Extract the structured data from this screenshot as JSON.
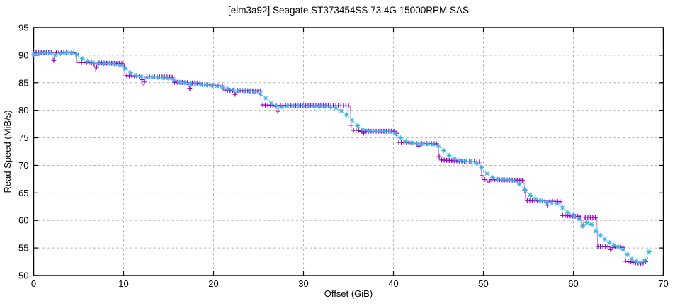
{
  "chart_data": {
    "type": "line",
    "title": "[elm3a92] Seagate ST373454SS 73.4G 15000RPM SAS",
    "xlabel": "Offset (GiB)",
    "ylabel": "Read Speed (MiB/s)",
    "xlim": [
      0,
      70
    ],
    "ylim": [
      50,
      95
    ],
    "xticks": [
      0,
      10,
      20,
      30,
      40,
      50,
      60,
      70
    ],
    "yticks": [
      50,
      55,
      60,
      65,
      70,
      75,
      80,
      85,
      90,
      95
    ],
    "grid": true,
    "legend": "none",
    "grid_color": "#b3b3b3",
    "border_color": "#000000",
    "background": "#ffffff",
    "series": [
      {
        "name": "read-speed-raw",
        "marker": "plus",
        "marker_color": "#9902c8",
        "line_color": "#c87ce6",
        "marker_interval_gib": 0.28,
        "points": [
          [
            0,
            90.1
          ],
          [
            0.25,
            90.5
          ],
          [
            1.95,
            90.5
          ],
          [
            2.2,
            88.8
          ],
          [
            2.45,
            90.5
          ],
          [
            4.75,
            90.4
          ],
          [
            4.85,
            88.7
          ],
          [
            6.7,
            88.6
          ],
          [
            6.9,
            87.0
          ],
          [
            7.1,
            88.6
          ],
          [
            10.05,
            88.5
          ],
          [
            10.15,
            86.3
          ],
          [
            11.95,
            86.2
          ],
          [
            12.2,
            84.4
          ],
          [
            12.45,
            86.1
          ],
          [
            15.5,
            86.0
          ],
          [
            15.6,
            85.1
          ],
          [
            17.15,
            85.0
          ],
          [
            17.4,
            83.8
          ],
          [
            17.65,
            85.0
          ],
          [
            18.5,
            84.9
          ],
          [
            18.6,
            84.7
          ],
          [
            21.0,
            84.4
          ],
          [
            21.1,
            83.7
          ],
          [
            22.15,
            83.6
          ],
          [
            22.4,
            82.9
          ],
          [
            22.65,
            83.6
          ],
          [
            25.2,
            83.5
          ],
          [
            25.3,
            81.0
          ],
          [
            26.85,
            80.9
          ],
          [
            27.1,
            79.5
          ],
          [
            27.35,
            80.9
          ],
          [
            35.2,
            80.8
          ],
          [
            35.3,
            76.4
          ],
          [
            36.35,
            76.3
          ],
          [
            36.6,
            75.7
          ],
          [
            36.85,
            76.2
          ],
          [
            40.3,
            76.2
          ],
          [
            40.4,
            74.2
          ],
          [
            42.55,
            74.0
          ],
          [
            42.8,
            73.4
          ],
          [
            43.05,
            74.0
          ],
          [
            45.0,
            73.9
          ],
          [
            45.1,
            71.0
          ],
          [
            49.6,
            70.6
          ],
          [
            49.9,
            67.5
          ],
          [
            50.3,
            67.4
          ],
          [
            50.55,
            66.8
          ],
          [
            50.8,
            67.4
          ],
          [
            54.5,
            67.3
          ],
          [
            54.7,
            63.6
          ],
          [
            56.85,
            63.5
          ],
          [
            57.1,
            62.7
          ],
          [
            57.35,
            63.5
          ],
          [
            58.7,
            63.4
          ],
          [
            58.8,
            60.9
          ],
          [
            60.75,
            60.7
          ],
          [
            61.0,
            58.7
          ],
          [
            61.25,
            60.6
          ],
          [
            62.6,
            60.5
          ],
          [
            62.7,
            55.3
          ],
          [
            63.95,
            55.2
          ],
          [
            64.2,
            54.5
          ],
          [
            64.45,
            55.2
          ],
          [
            65.7,
            55.1
          ],
          [
            65.8,
            52.6
          ],
          [
            67.5,
            52.2
          ],
          [
            68.0,
            52.4
          ],
          [
            68.3,
            53.3
          ]
        ]
      },
      {
        "name": "read-speed-smoothed",
        "marker": "asterisk",
        "marker_color": "#2eb8e6",
        "line_color": "#93d7ef",
        "points": [
          [
            0,
            90.1
          ],
          [
            0.6,
            90.3
          ],
          [
            1.2,
            90.4
          ],
          [
            1.8,
            90.4
          ],
          [
            2.4,
            90.0
          ],
          [
            3.0,
            90.3
          ],
          [
            3.6,
            90.4
          ],
          [
            4.2,
            90.4
          ],
          [
            4.8,
            90.1
          ],
          [
            5.4,
            89.4
          ],
          [
            6.0,
            88.9
          ],
          [
            6.6,
            88.7
          ],
          [
            7.2,
            88.5
          ],
          [
            7.8,
            88.5
          ],
          [
            8.4,
            88.5
          ],
          [
            9.0,
            88.4
          ],
          [
            9.6,
            88.2
          ],
          [
            10.2,
            87.6
          ],
          [
            10.8,
            86.8
          ],
          [
            11.4,
            86.3
          ],
          [
            12.0,
            86.1
          ],
          [
            12.6,
            85.9
          ],
          [
            13.2,
            86.0
          ],
          [
            13.8,
            85.9
          ],
          [
            14.4,
            85.9
          ],
          [
            15.0,
            85.8
          ],
          [
            15.6,
            85.5
          ],
          [
            16.2,
            85.1
          ],
          [
            16.8,
            85.0
          ],
          [
            17.4,
            84.8
          ],
          [
            18.0,
            84.8
          ],
          [
            18.6,
            84.7
          ],
          [
            19.2,
            84.6
          ],
          [
            19.8,
            84.5
          ],
          [
            20.4,
            84.4
          ],
          [
            21.0,
            84.2
          ],
          [
            21.6,
            83.9
          ],
          [
            22.2,
            83.7
          ],
          [
            22.8,
            83.5
          ],
          [
            23.4,
            83.5
          ],
          [
            24.0,
            83.5
          ],
          [
            24.6,
            83.4
          ],
          [
            25.2,
            83.0
          ],
          [
            25.8,
            82.2
          ],
          [
            26.4,
            81.3
          ],
          [
            27.0,
            80.8
          ],
          [
            27.6,
            80.6
          ],
          [
            28.2,
            80.8
          ],
          [
            28.8,
            80.8
          ],
          [
            29.4,
            80.8
          ],
          [
            30.0,
            80.8
          ],
          [
            30.6,
            80.8
          ],
          [
            31.2,
            80.7
          ],
          [
            31.8,
            80.7
          ],
          [
            32.4,
            80.7
          ],
          [
            33.0,
            80.6
          ],
          [
            33.6,
            80.4
          ],
          [
            34.2,
            79.9
          ],
          [
            34.8,
            79.2
          ],
          [
            35.4,
            78.2
          ],
          [
            36.0,
            77.2
          ],
          [
            36.6,
            76.5
          ],
          [
            37.2,
            76.3
          ],
          [
            37.8,
            76.2
          ],
          [
            38.4,
            76.2
          ],
          [
            39.0,
            76.2
          ],
          [
            39.6,
            76.1
          ],
          [
            40.2,
            75.8
          ],
          [
            40.8,
            75.0
          ],
          [
            41.4,
            74.4
          ],
          [
            42.0,
            74.1
          ],
          [
            42.6,
            74.0
          ],
          [
            43.2,
            73.9
          ],
          [
            43.8,
            73.9
          ],
          [
            44.4,
            73.8
          ],
          [
            45.0,
            73.5
          ],
          [
            45.6,
            72.7
          ],
          [
            46.2,
            71.8
          ],
          [
            46.8,
            71.2
          ],
          [
            47.4,
            70.9
          ],
          [
            48.0,
            70.8
          ],
          [
            48.6,
            70.7
          ],
          [
            49.2,
            70.4
          ],
          [
            49.8,
            69.6
          ],
          [
            50.4,
            68.5
          ],
          [
            51.0,
            67.8
          ],
          [
            51.6,
            67.5
          ],
          [
            52.2,
            67.4
          ],
          [
            52.8,
            67.4
          ],
          [
            53.4,
            67.2
          ],
          [
            54.0,
            66.6
          ],
          [
            54.6,
            65.6
          ],
          [
            55.2,
            64.6
          ],
          [
            55.8,
            63.9
          ],
          [
            56.4,
            63.6
          ],
          [
            57.0,
            63.3
          ],
          [
            57.6,
            63.2
          ],
          [
            58.2,
            63.0
          ],
          [
            58.8,
            62.3
          ],
          [
            59.4,
            61.4
          ],
          [
            60.0,
            60.9
          ],
          [
            60.6,
            60.3
          ],
          [
            61.0,
            59.0
          ],
          [
            61.5,
            59.6
          ],
          [
            62.0,
            59.3
          ],
          [
            62.5,
            58.0
          ],
          [
            63.0,
            57.3
          ],
          [
            63.5,
            56.6
          ],
          [
            64.0,
            56.0
          ],
          [
            64.5,
            55.5
          ],
          [
            65.0,
            55.2
          ],
          [
            65.5,
            54.7
          ],
          [
            66.0,
            53.8
          ],
          [
            66.5,
            53.0
          ],
          [
            67.0,
            52.6
          ],
          [
            67.4,
            52.4
          ],
          [
            67.9,
            52.7
          ],
          [
            68.4,
            54.3
          ]
        ]
      }
    ]
  }
}
